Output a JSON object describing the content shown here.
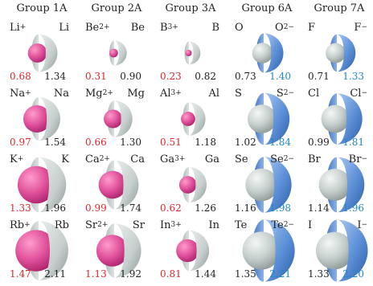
{
  "headers": [
    "Group 1A",
    "Group 2A",
    "Group 3A",
    "Group 6A",
    "Group 7A"
  ],
  "colors": {
    "cation": "#e0509a",
    "neutral": "#c6cfcd",
    "anion": "#5b8fd6",
    "value_ion_metal": "#e0262d",
    "value_atom": "#222222",
    "value_ion_nonmetal": "#1e88c8"
  },
  "columns": [
    {
      "kind": "metal",
      "rows": [
        {
          "ion": "Li",
          "ion_charge": "+",
          "atom": "Li",
          "ion_radius": "0.68",
          "atom_radius": "1.34"
        },
        {
          "ion": "Na",
          "ion_charge": "+",
          "atom": "Na",
          "ion_radius": "0.97",
          "atom_radius": "1.54"
        },
        {
          "ion": "K",
          "ion_charge": "+",
          "atom": "K",
          "ion_radius": "1.33",
          "atom_radius": "1.96"
        },
        {
          "ion": "Rb",
          "ion_charge": "+",
          "atom": "Rb",
          "ion_radius": "1.47",
          "atom_radius": "2.11"
        }
      ]
    },
    {
      "kind": "metal",
      "rows": [
        {
          "ion": "Be",
          "ion_charge": "2+",
          "atom": "Be",
          "ion_radius": "0.31",
          "atom_radius": "0.90"
        },
        {
          "ion": "Mg",
          "ion_charge": "2+",
          "atom": "Mg",
          "ion_radius": "0.66",
          "atom_radius": "1.30"
        },
        {
          "ion": "Ca",
          "ion_charge": "2+",
          "atom": "Ca",
          "ion_radius": "0.99",
          "atom_radius": "1.74"
        },
        {
          "ion": "Sr",
          "ion_charge": "2+",
          "atom": "Sr",
          "ion_radius": "1.13",
          "atom_radius": "1.92"
        }
      ]
    },
    {
      "kind": "metal",
      "rows": [
        {
          "ion": "B",
          "ion_charge": "3+",
          "atom": "B",
          "ion_radius": "0.23",
          "atom_radius": "0.82"
        },
        {
          "ion": "Al",
          "ion_charge": "3+",
          "atom": "Al",
          "ion_radius": "0.51",
          "atom_radius": "1.18"
        },
        {
          "ion": "Ga",
          "ion_charge": "3+",
          "atom": "Ga",
          "ion_radius": "0.62",
          "atom_radius": "1.26"
        },
        {
          "ion": "In",
          "ion_charge": "3+",
          "atom": "In",
          "ion_radius": "0.81",
          "atom_radius": "1.44"
        }
      ]
    },
    {
      "kind": "nonmetal",
      "rows": [
        {
          "atom": "O",
          "ion": "O",
          "ion_charge": "2−",
          "atom_radius": "0.73",
          "ion_radius": "1.40"
        },
        {
          "atom": "S",
          "ion": "S",
          "ion_charge": "2−",
          "atom_radius": "1.02",
          "ion_radius": "1.84"
        },
        {
          "atom": "Se",
          "ion": "Se",
          "ion_charge": "2−",
          "atom_radius": "1.16",
          "ion_radius": "1.98"
        },
        {
          "atom": "Te",
          "ion": "Te",
          "ion_charge": "2−",
          "atom_radius": "1.35",
          "ion_radius": "2.21"
        }
      ]
    },
    {
      "kind": "nonmetal",
      "rows": [
        {
          "atom": "F",
          "ion": "F",
          "ion_charge": "−",
          "atom_radius": "0.71",
          "ion_radius": "1.33"
        },
        {
          "atom": "Cl",
          "ion": "Cl",
          "ion_charge": "−",
          "atom_radius": "0.99",
          "ion_radius": "1.81"
        },
        {
          "atom": "Br",
          "ion": "Br",
          "ion_charge": "−",
          "atom_radius": "1.14",
          "ion_radius": "1.96"
        },
        {
          "atom": "I",
          "ion": "I",
          "ion_charge": "−",
          "atom_radius": "1.33",
          "ion_radius": "2.20"
        }
      ]
    }
  ]
}
